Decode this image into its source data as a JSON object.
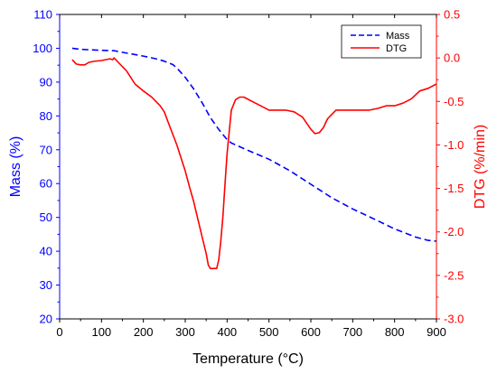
{
  "chart_data": {
    "type": "line",
    "title": "",
    "xlabel": "Temperature (°C)",
    "ylabel_left": "Mass (%)",
    "ylabel_right": "DTG (%/min)",
    "xlim": [
      0,
      900
    ],
    "ylim_left": [
      20,
      110
    ],
    "ylim_right": [
      -3.0,
      0.5
    ],
    "x_ticks": [
      0,
      100,
      200,
      300,
      400,
      500,
      600,
      700,
      800,
      900
    ],
    "y_left_ticks": [
      20,
      30,
      40,
      50,
      60,
      70,
      80,
      90,
      100,
      110
    ],
    "y_right_ticks": [
      "0.5",
      "0.0",
      "-0.5",
      "-1.0",
      "-1.5",
      "-2.0",
      "-2.5",
      "-3.0"
    ],
    "grid": false,
    "legend_position": "top-right",
    "colors": {
      "mass": "#0000ff",
      "dtg": "#ff0000",
      "axis_left": "#0000ff",
      "axis_right": "#ff0000"
    },
    "series": [
      {
        "name": "Mass",
        "axis": "left",
        "style": "dashed",
        "x": [
          30,
          50,
          100,
          130,
          150,
          200,
          230,
          250,
          270,
          280,
          300,
          320,
          340,
          360,
          380,
          400,
          410,
          450,
          500,
          550,
          600,
          650,
          700,
          750,
          800,
          850,
          880,
          900
        ],
        "y": [
          100,
          99.7,
          99.4,
          99.3,
          98.8,
          97.7,
          96.9,
          96.2,
          95.2,
          94.2,
          91.4,
          88,
          84,
          79.5,
          76,
          73,
          72,
          69.8,
          67.2,
          63.8,
          59.8,
          55.8,
          52.5,
          49.6,
          46.6,
          44.2,
          43.2,
          43
        ]
      },
      {
        "name": "DTG",
        "axis": "right",
        "style": "solid",
        "x": [
          30,
          40,
          50,
          60,
          70,
          80,
          100,
          120,
          127,
          130,
          140,
          160,
          180,
          200,
          220,
          240,
          250,
          260,
          280,
          300,
          310,
          320,
          330,
          340,
          350,
          355,
          360,
          365,
          370,
          375,
          380,
          385,
          390,
          395,
          400,
          410,
          420,
          430,
          440,
          460,
          480,
          500,
          520,
          540,
          560,
          580,
          600,
          610,
          620,
          630,
          640,
          660,
          670,
          680,
          700,
          720,
          740,
          760,
          780,
          800,
          820,
          840,
          860,
          880,
          900
        ],
        "y": [
          -0.02,
          -0.07,
          -0.08,
          -0.08,
          -0.05,
          -0.04,
          -0.03,
          -0.01,
          -0.02,
          0.0,
          -0.05,
          -0.15,
          -0.3,
          -0.38,
          -0.45,
          -0.55,
          -0.62,
          -0.75,
          -1.0,
          -1.3,
          -1.48,
          -1.65,
          -1.85,
          -2.05,
          -2.25,
          -2.38,
          -2.42,
          -2.42,
          -2.42,
          -2.42,
          -2.32,
          -2.1,
          -1.82,
          -1.45,
          -1.1,
          -0.6,
          -0.48,
          -0.45,
          -0.45,
          -0.5,
          -0.55,
          -0.6,
          -0.6,
          -0.6,
          -0.62,
          -0.68,
          -0.82,
          -0.87,
          -0.86,
          -0.8,
          -0.7,
          -0.6,
          -0.6,
          -0.6,
          -0.6,
          -0.6,
          -0.6,
          -0.58,
          -0.55,
          -0.55,
          -0.52,
          -0.47,
          -0.38,
          -0.35,
          -0.3
        ]
      }
    ]
  }
}
